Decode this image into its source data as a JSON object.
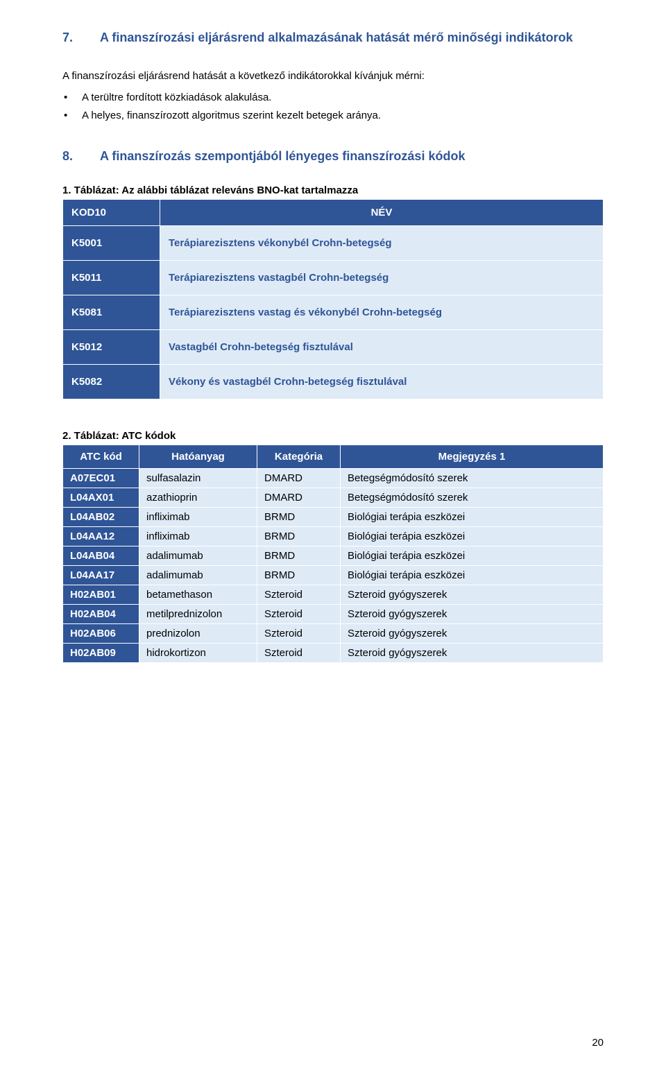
{
  "section7": {
    "number": "7.",
    "title": "A finanszírozási eljárásrend alkalmazásának hatását mérő minőségi indikátorok",
    "intro": "A finanszírozási eljárásrend hatását a következő indikátorokkal kívánjuk mérni:",
    "bullets": [
      "A terültre fordított közkiadások alakulása.",
      "A helyes, finanszírozott algoritmus szerint kezelt betegek aránya."
    ]
  },
  "section8": {
    "number": "8.",
    "title": "A finanszírozás szempontjából lényeges finanszírozási kódok"
  },
  "table1": {
    "caption": "1. Táblázat: Az alábbi táblázat releváns BNO-kat tartalmazza",
    "headers": [
      "KOD10",
      "NÉV"
    ],
    "rows": [
      {
        "code": "K5001",
        "name": "Terápiarezisztens vékonybél Crohn-betegség"
      },
      {
        "code": "K5011",
        "name": "Terápiarezisztens vastagbél Crohn-betegség"
      },
      {
        "code": "K5081",
        "name": "Terápiarezisztens vastag és vékonybél Crohn-betegség"
      },
      {
        "code": "K5012",
        "name": "Vastagbél Crohn-betegség fisztulával"
      },
      {
        "code": "K5082",
        "name": "Vékony és vastagbél Crohn-betegség fisztulával"
      }
    ]
  },
  "table2": {
    "caption": "2. Táblázat: ATC kódok",
    "headers": [
      "ATC kód",
      "Hatóanyag",
      "Kategória",
      "Megjegyzés 1"
    ],
    "rows": [
      {
        "code": "A07EC01",
        "agent": "sulfasalazin",
        "cat": "DMARD",
        "note": "Betegségmódosító szerek"
      },
      {
        "code": "L04AX01",
        "agent": "azathioprin",
        "cat": "DMARD",
        "note": "Betegségmódosító szerek"
      },
      {
        "code": "L04AB02",
        "agent": "infliximab",
        "cat": "BRMD",
        "note": "Biológiai terápia eszközei"
      },
      {
        "code": "L04AA12",
        "agent": "infliximab",
        "cat": "BRMD",
        "note": "Biológiai terápia eszközei"
      },
      {
        "code": "L04AB04",
        "agent": "adalimumab",
        "cat": "BRMD",
        "note": "Biológiai terápia eszközei"
      },
      {
        "code": "L04AA17",
        "agent": "adalimumab",
        "cat": "BRMD",
        "note": "Biológiai terápia eszközei"
      },
      {
        "code": "H02AB01",
        "agent": "betamethason",
        "cat": "Szteroid",
        "note": "Szteroid gyógyszerek"
      },
      {
        "code": "H02AB04",
        "agent": "metilprednizolon",
        "cat": "Szteroid",
        "note": "Szteroid gyógyszerek"
      },
      {
        "code": "H02AB06",
        "agent": "prednizolon",
        "cat": "Szteroid",
        "note": "Szteroid gyógyszerek"
      },
      {
        "code": "H02AB09",
        "agent": "hidrokortizon",
        "cat": "Szteroid",
        "note": "Szteroid gyógyszerek"
      }
    ]
  },
  "pageNumber": "20",
  "colors": {
    "headingBlue": "#2f5597",
    "tableHeaderBg": "#2f5597",
    "tableCellLight": "#deeaf6",
    "white": "#ffffff",
    "black": "#000000"
  }
}
